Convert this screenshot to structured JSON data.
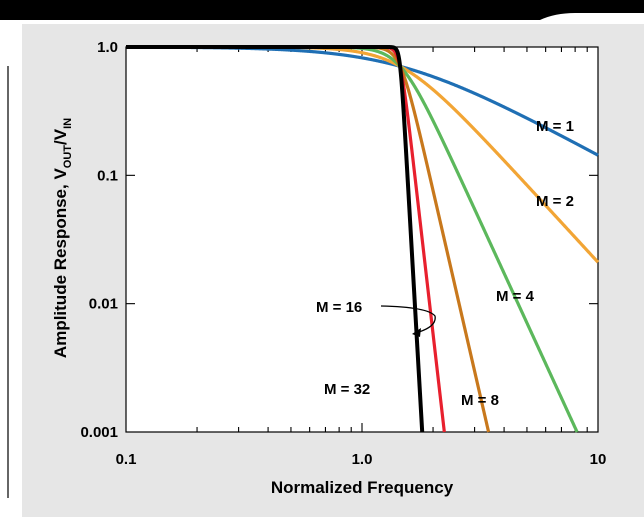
{
  "chart_data": {
    "type": "line",
    "x_scale": "log",
    "y_scale": "log",
    "xlim": [
      0.1,
      10
    ],
    "ylim": [
      0.001,
      1.0
    ],
    "xlabel": "Normalized Frequency",
    "ylabel": {
      "base": "Amplitude Response, V",
      "sub1": "OUT",
      "mid": "/V",
      "sub2": "IN"
    },
    "x_ticks": [
      {
        "value": 0.1,
        "label": "0.1"
      },
      {
        "value": 1.0,
        "label": "1.0"
      },
      {
        "value": 10,
        "label": "10"
      }
    ],
    "y_ticks": [
      {
        "value": 1.0,
        "label": "1.0"
      },
      {
        "value": 0.1,
        "label": "0.1"
      },
      {
        "value": 0.01,
        "label": "0.01"
      },
      {
        "value": 0.001,
        "label": "0.001"
      }
    ],
    "grid": false,
    "corner_frequency": 1.45,
    "series": [
      {
        "name": "M = 1",
        "order": 1,
        "color": "#1f6fb4",
        "label": "M = 1"
      },
      {
        "name": "M = 2",
        "order": 2,
        "color": "#f2a535",
        "label": "M = 2"
      },
      {
        "name": "M = 4",
        "order": 4,
        "color": "#5cb85c",
        "label": "M = 4"
      },
      {
        "name": "M = 8",
        "order": 8,
        "color": "#c8781c",
        "label": "M = 8"
      },
      {
        "name": "M = 16",
        "order": 16,
        "color": "#e8202e",
        "label": "M = 16"
      },
      {
        "name": "M = 32",
        "order": 32,
        "color": "#000000",
        "label": "M = 32"
      }
    ]
  },
  "colors": {
    "header_bar": "#000000",
    "panel_background": "#e6e6e6",
    "plot_background": "#ffffff"
  }
}
